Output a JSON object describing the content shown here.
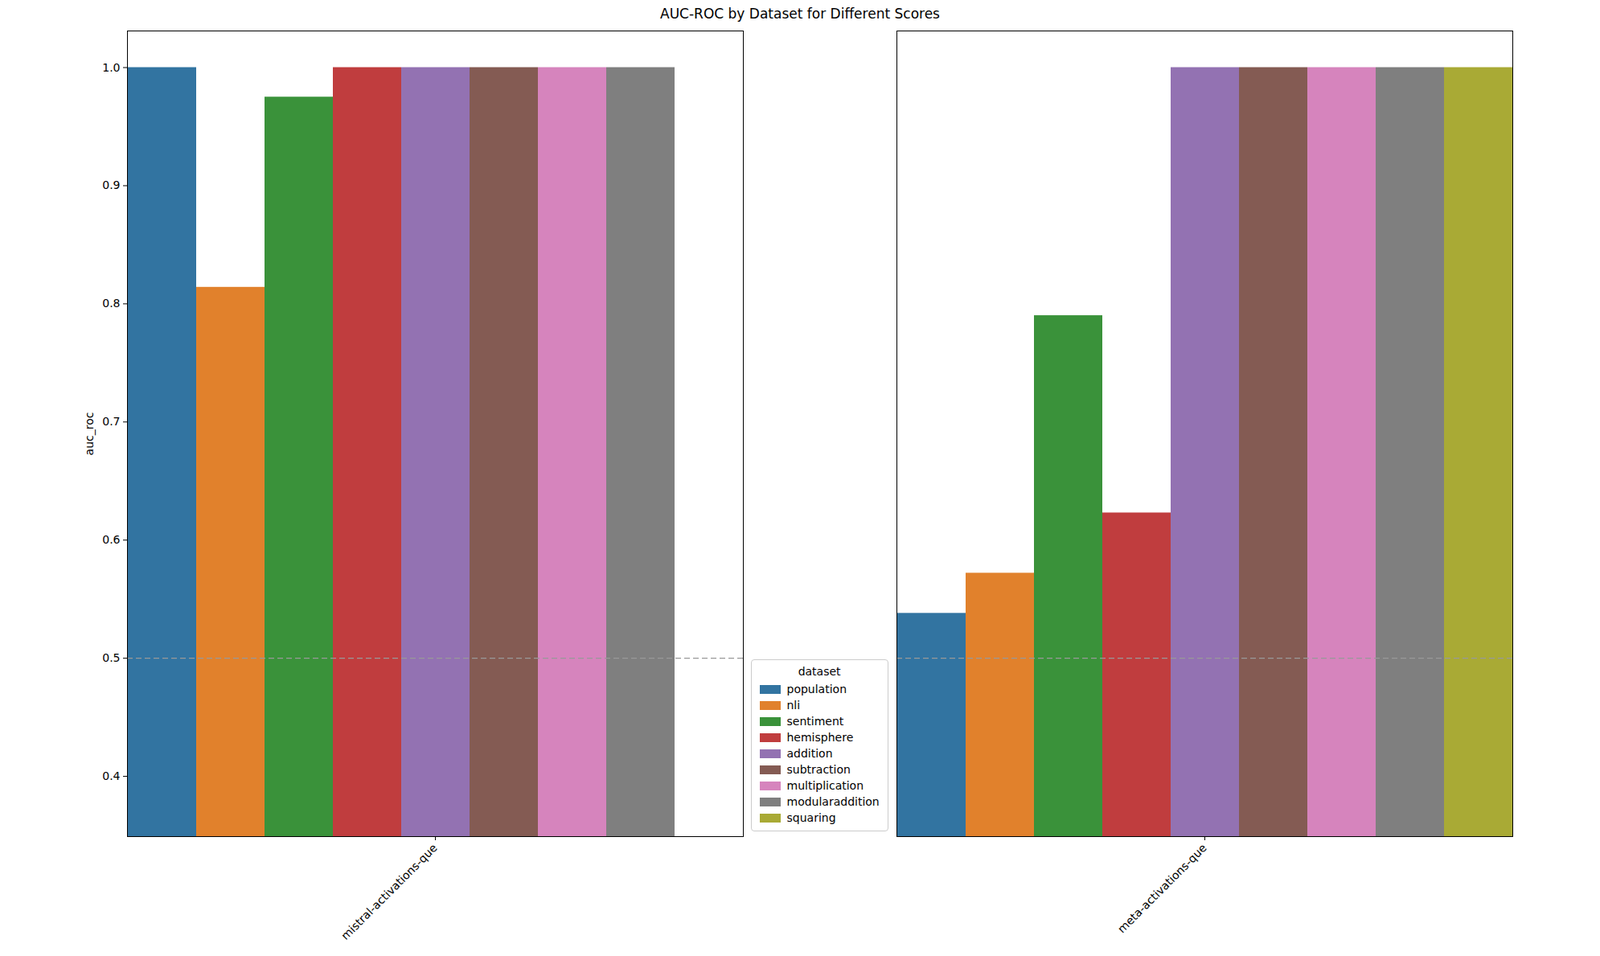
{
  "chart_data": {
    "type": "bar",
    "title": "AUC-ROC by Dataset for Different Scores",
    "y_label": "auc_roc",
    "legend_title": "dataset",
    "legend": "lower center",
    "categories": [
      "mistral-activations-que",
      "meta-activations-que"
    ],
    "series": [
      {
        "name": "population",
        "color": "#3274a1",
        "values": [
          1.0,
          0.538
        ]
      },
      {
        "name": "nli",
        "color": "#e1812c",
        "values": [
          0.814,
          0.572
        ]
      },
      {
        "name": "sentiment",
        "color": "#3a923a",
        "values": [
          0.975,
          0.79
        ]
      },
      {
        "name": "hemisphere",
        "color": "#c03d3e",
        "values": [
          1.0,
          0.623
        ]
      },
      {
        "name": "addition",
        "color": "#9372b2",
        "values": [
          1.0,
          1.0
        ]
      },
      {
        "name": "subtraction",
        "color": "#845b53",
        "values": [
          1.0,
          1.0
        ]
      },
      {
        "name": "multiplication",
        "color": "#d684bd",
        "values": [
          1.0,
          1.0
        ]
      },
      {
        "name": "modularaddition",
        "color": "#7f7f7f",
        "values": [
          1.0,
          1.0
        ]
      },
      {
        "name": "squaring",
        "color": "#a9aa35",
        "values": [
          null,
          1.0
        ]
      }
    ],
    "reference_line": 0.5,
    "ylim": [
      0.349,
      1.031
    ],
    "yticks": [
      0.4,
      0.5,
      0.6,
      0.7,
      0.8,
      0.9,
      {
        "value": 1,
        "label": "1.0"
      }
    ],
    "grid": false
  }
}
